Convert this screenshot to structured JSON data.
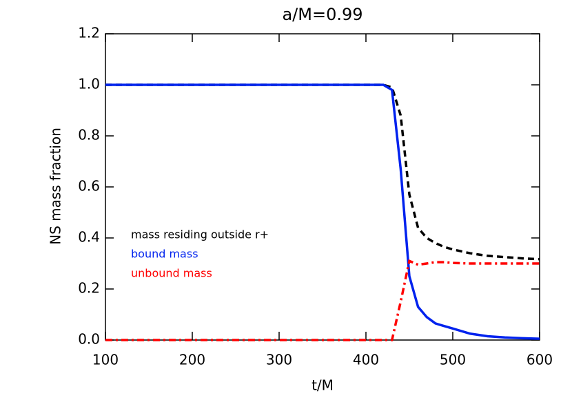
{
  "chart_data": {
    "type": "line",
    "title": "a/M=0.99",
    "xlabel": "t/M",
    "ylabel": "NS mass fraction",
    "x": [
      100,
      420,
      430,
      440,
      450,
      460,
      470,
      480,
      490,
      500,
      520,
      540,
      560,
      580,
      600
    ],
    "series": [
      {
        "name": "mass residing outside r+",
        "color": "#000000",
        "style": "dashed",
        "values": [
          1.0,
          1.0,
          0.99,
          0.88,
          0.57,
          0.44,
          0.4,
          0.38,
          0.365,
          0.355,
          0.34,
          0.33,
          0.325,
          0.32,
          0.317
        ]
      },
      {
        "name": "bound mass",
        "color": "#0022ee",
        "style": "solid",
        "values": [
          1.0,
          1.0,
          0.98,
          0.67,
          0.25,
          0.13,
          0.09,
          0.065,
          0.055,
          0.045,
          0.025,
          0.015,
          0.01,
          0.007,
          0.005
        ]
      },
      {
        "name": "unbound mass",
        "color": "#ff0000",
        "style": "dashdot",
        "values": [
          0.0,
          0.0,
          0.0,
          0.15,
          0.31,
          0.295,
          0.3,
          0.305,
          0.305,
          0.302,
          0.3,
          0.3,
          0.3,
          0.3,
          0.3
        ]
      }
    ],
    "xlim": [
      100,
      600
    ],
    "xticks": [
      100,
      200,
      300,
      400,
      500,
      600
    ],
    "ylim": [
      0,
      1.2
    ],
    "yticks": [
      {
        "value": 0,
        "label": "0.0"
      },
      0.2,
      0.4,
      0.6,
      0.8,
      {
        "value": 1,
        "label": "1.0"
      },
      1.2
    ]
  }
}
